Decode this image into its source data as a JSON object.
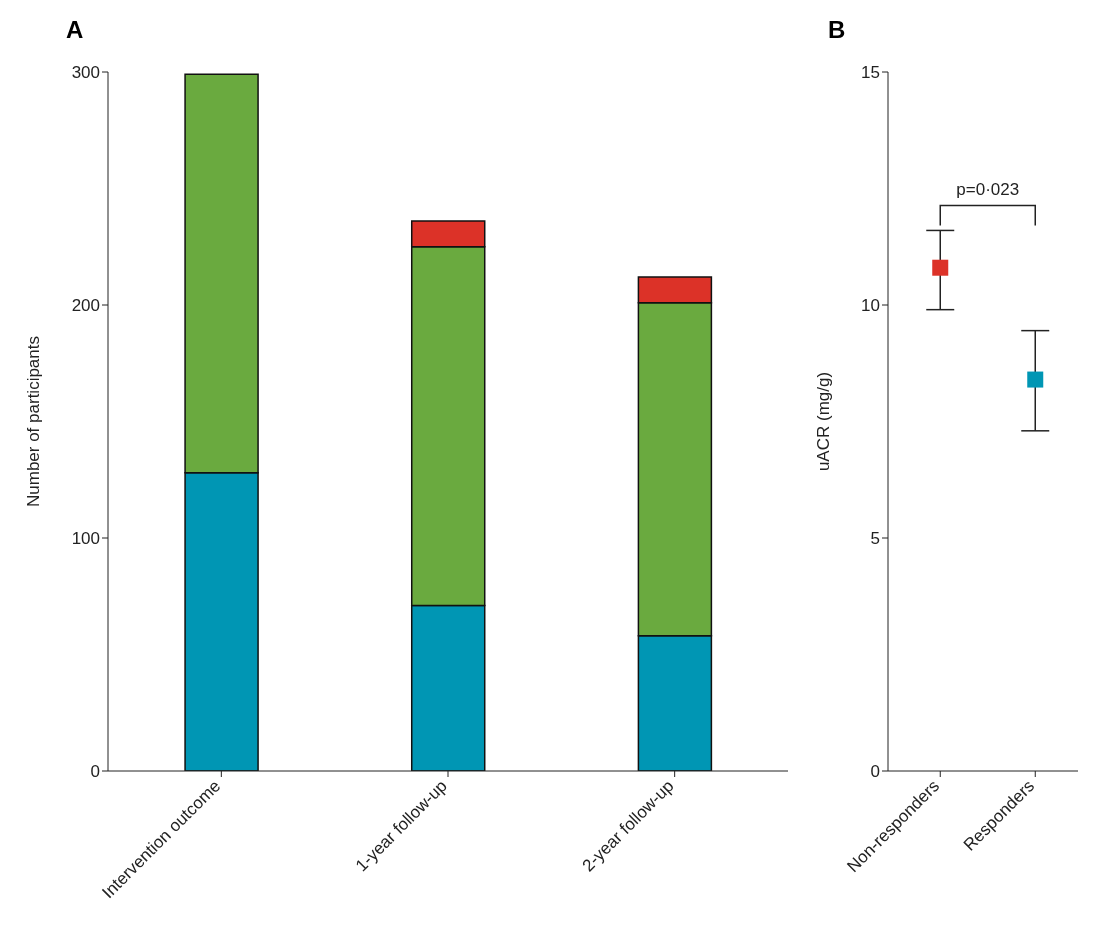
{
  "chart_data": [
    {
      "type": "bar",
      "title": "A",
      "ylabel": "Number of participants",
      "categories": [
        "Intervention outcome",
        "1-year follow-up",
        "2-year follow-up"
      ],
      "stacked": true,
      "series": [
        {
          "color": "#0096b4",
          "values": [
            128,
            71,
            58
          ]
        },
        {
          "color": "#6aaa3f",
          "values": [
            171,
            154,
            143
          ]
        },
        {
          "color": "#dc3228",
          "values": [
            null,
            11,
            11
          ]
        }
      ],
      "ylim": [
        0,
        300
      ],
      "yticks": [
        0,
        100,
        200,
        300
      ]
    },
    {
      "type": "scatter",
      "title": "B",
      "ylabel": "uACR (mg/g)",
      "categories": [
        "Non-responders",
        "Responders"
      ],
      "values": [
        10.8,
        8.4
      ],
      "colors": [
        "#dc3228",
        "#0096b4"
      ],
      "errors": [
        [
          9.9,
          11.6
        ],
        [
          7.3,
          9.45
        ]
      ],
      "marker": "square",
      "ylim": [
        0,
        15
      ],
      "yticks": [
        0,
        5,
        10,
        15
      ],
      "annotations": [
        "p=0·023"
      ]
    }
  ]
}
